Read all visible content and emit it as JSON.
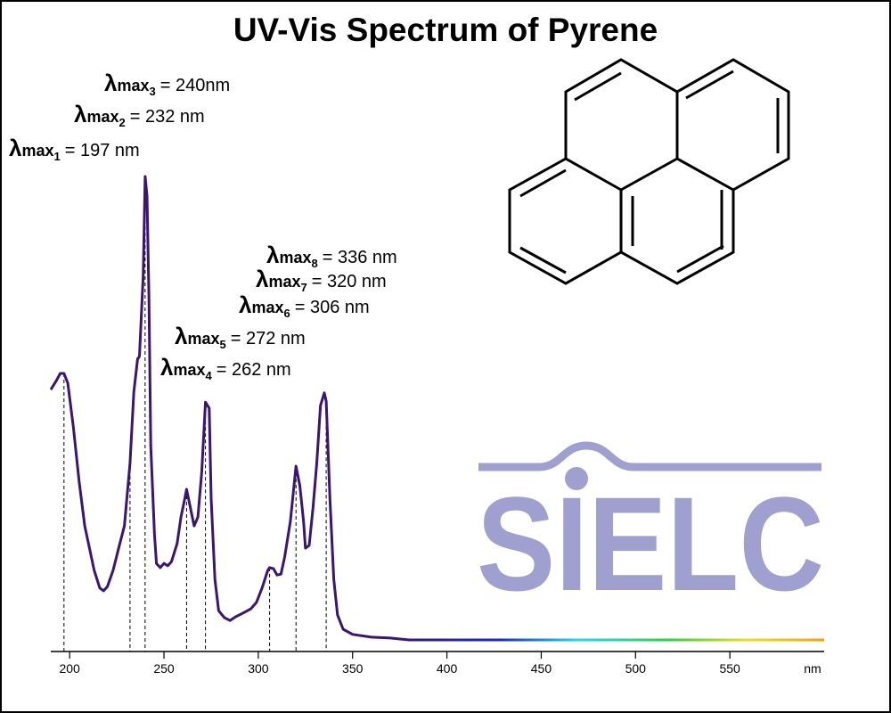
{
  "chart_data": {
    "type": "line",
    "title": "UV-Vis Spectrum of Pyrene",
    "xlabel": "nm",
    "xlim": [
      190,
      600
    ],
    "xticks": [
      200,
      250,
      300,
      350,
      400,
      450,
      500,
      550
    ],
    "ylim": [
      0,
      1
    ],
    "logo": "SIELC",
    "series": [
      {
        "color": "#3a1670",
        "x": [
          190,
          193,
          195,
          197,
          199,
          202,
          205,
          208,
          210,
          213,
          216,
          218,
          220,
          223,
          226,
          229,
          232,
          234,
          236,
          237,
          239,
          240,
          241,
          242,
          243,
          245,
          246,
          248,
          250,
          252,
          254,
          257,
          259,
          261,
          262,
          264,
          266,
          268,
          270,
          272,
          274,
          275,
          277,
          279,
          282,
          285,
          288,
          292,
          296,
          299,
          302,
          305,
          306,
          308,
          310,
          312,
          314,
          317,
          320,
          322,
          324,
          325,
          327,
          329,
          331,
          333,
          335,
          336,
          338,
          340,
          342,
          345,
          350,
          360,
          370,
          380,
          450,
          600
        ],
        "values": [
          0.54,
          0.56,
          0.575,
          0.575,
          0.554,
          0.458,
          0.342,
          0.246,
          0.208,
          0.15,
          0.112,
          0.106,
          0.115,
          0.15,
          0.198,
          0.246,
          0.381,
          0.535,
          0.606,
          0.612,
          0.785,
          1.0,
          0.958,
          0.746,
          0.419,
          0.227,
          0.165,
          0.156,
          0.165,
          0.16,
          0.169,
          0.208,
          0.265,
          0.304,
          0.325,
          0.285,
          0.246,
          0.265,
          0.362,
          0.513,
          0.5,
          0.304,
          0.131,
          0.063,
          0.048,
          0.042,
          0.05,
          0.058,
          0.067,
          0.081,
          0.112,
          0.15,
          0.156,
          0.154,
          0.14,
          0.142,
          0.179,
          0.256,
          0.375,
          0.333,
          0.256,
          0.198,
          0.204,
          0.285,
          0.381,
          0.506,
          0.533,
          0.515,
          0.304,
          0.131,
          0.054,
          0.023,
          0.012,
          0.006,
          0.004,
          0,
          0,
          0
        ]
      }
    ],
    "annotation_symbol": "λ",
    "annotation_subscript": "max",
    "annotations": [
      {
        "index": "1",
        "text": "= 197 nm",
        "x": 197
      },
      {
        "index": "2",
        "text": "= 232 nm",
        "x": 232
      },
      {
        "index": "3",
        "text": "= 240nm",
        "x": 240
      },
      {
        "index": "4",
        "text": "= 262 nm",
        "x": 262
      },
      {
        "index": "5",
        "text": "= 272 nm",
        "x": 272
      },
      {
        "index": "6",
        "text": "= 306 nm",
        "x": 306
      },
      {
        "index": "7",
        "text": "= 320 nm",
        "x": 320
      },
      {
        "index": "8",
        "text": "= 336 nm",
        "x": 336
      }
    ]
  }
}
